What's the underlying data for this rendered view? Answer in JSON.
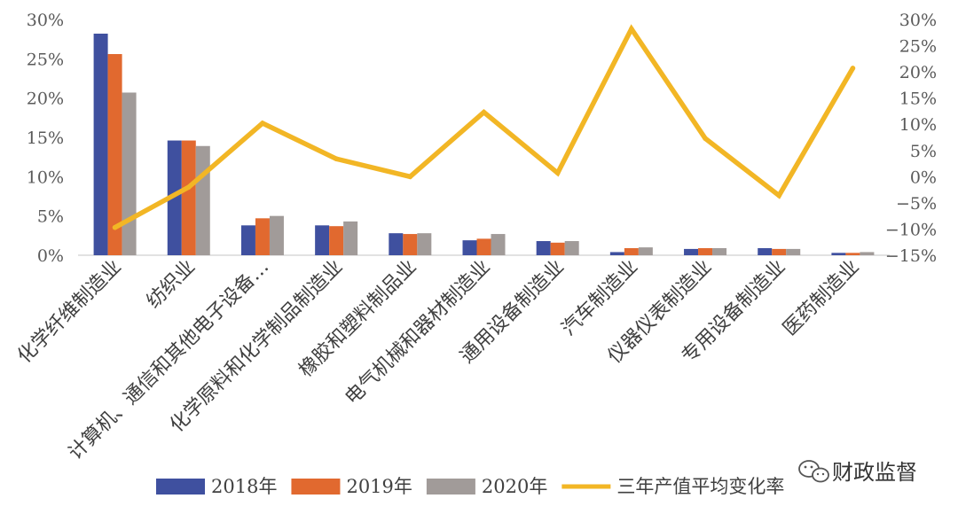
{
  "chart_data": {
    "type": "bar",
    "categories": [
      "化学纤维制造业",
      "纺织业",
      "计算机、通信和其他电子设备…",
      "化学原料和化学制品制造业",
      "橡胶和塑料制品业",
      "电气机械和器材制造业",
      "通用设备制造业",
      "汽车制造业",
      "仪器仪表制造业",
      "专用设备制造业",
      "医药制造业"
    ],
    "series": [
      {
        "name": "2018年",
        "axis": "left",
        "values": [
          28.2,
          14.6,
          3.8,
          3.8,
          2.8,
          1.9,
          1.8,
          0.4,
          0.8,
          0.9,
          0.3
        ],
        "color": "#3F509F"
      },
      {
        "name": "2019年",
        "axis": "left",
        "values": [
          25.6,
          14.6,
          4.7,
          3.7,
          2.7,
          2.1,
          1.6,
          0.9,
          0.9,
          0.8,
          0.3
        ],
        "color": "#E1692F"
      },
      {
        "name": "2020年",
        "axis": "left",
        "values": [
          20.7,
          13.9,
          5.0,
          4.3,
          2.8,
          2.7,
          1.8,
          1.0,
          0.9,
          0.8,
          0.4
        ],
        "color": "#A19B99"
      },
      {
        "name": "三年产值平均变化率",
        "axis": "right",
        "type": "line",
        "values": [
          -9.7,
          -2.0,
          10.2,
          3.4,
          0.0,
          12.3,
          0.7,
          28.2,
          7.3,
          -3.6,
          20.7
        ],
        "color": "#F2B625"
      }
    ],
    "left_axis": {
      "ylim": [
        0,
        30
      ],
      "ticks": [
        "0%",
        "5%",
        "10%",
        "15%",
        "20%",
        "25%",
        "30%"
      ]
    },
    "right_axis": {
      "ylim": [
        -15,
        30
      ],
      "ticks": [
        "−15%",
        "−10%",
        "−5%",
        "0%",
        "5%",
        "10%",
        "15%",
        "20%",
        "25%",
        "30%"
      ]
    },
    "grid": false,
    "legend_position": "bottom"
  },
  "watermark": {
    "text": "财政监督",
    "icon": "wechat-icon"
  }
}
